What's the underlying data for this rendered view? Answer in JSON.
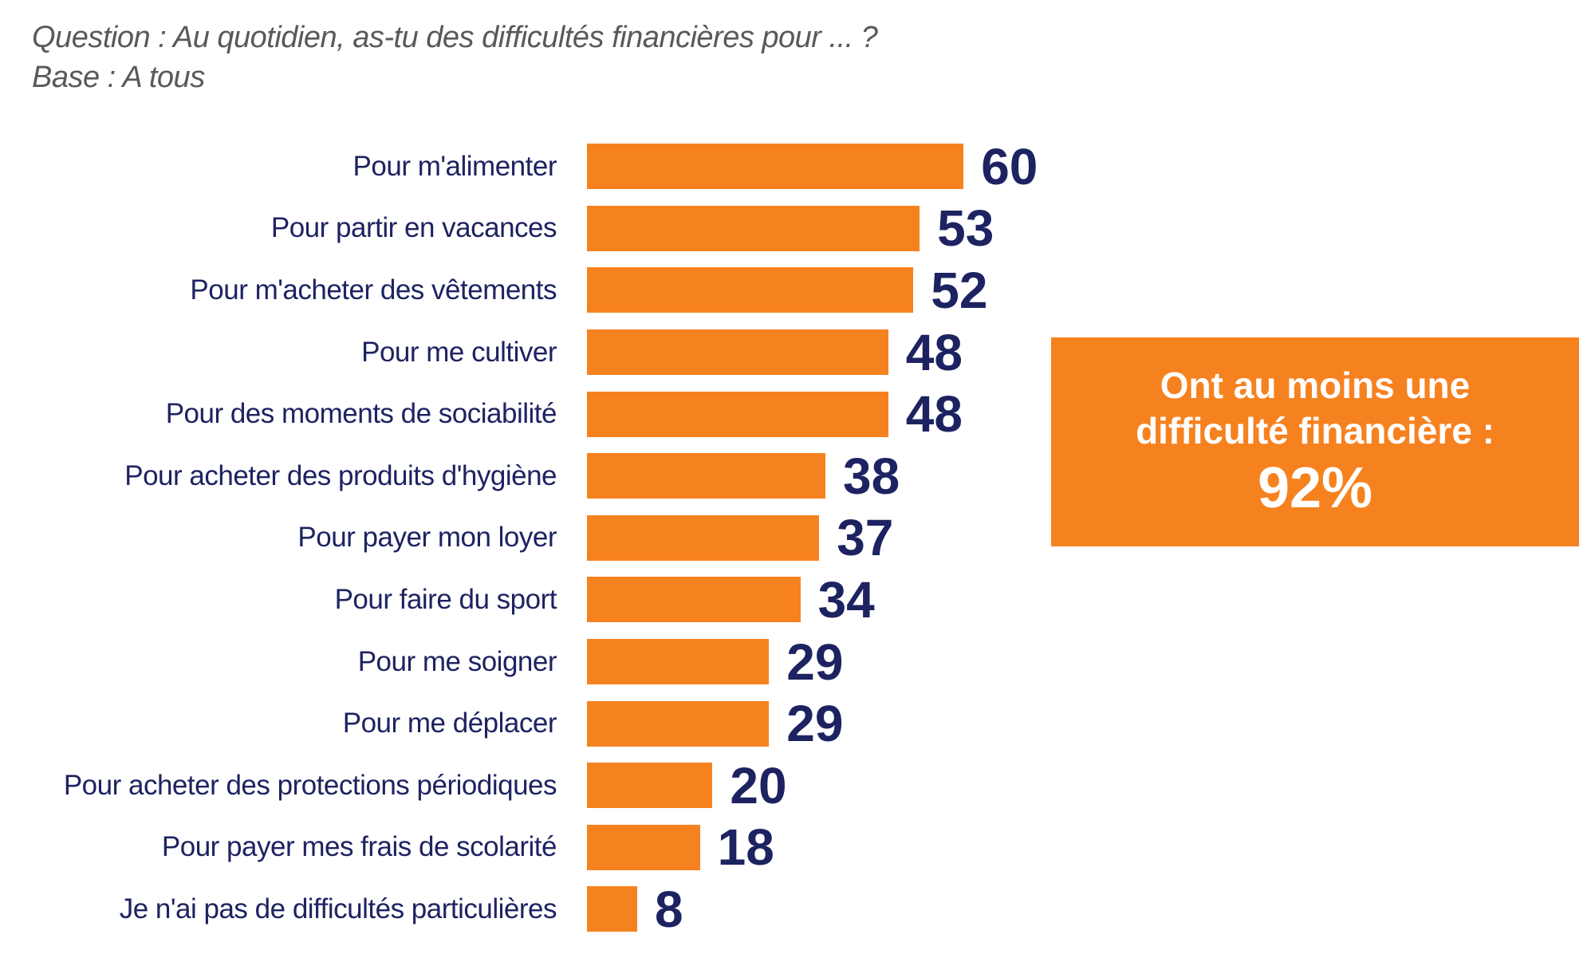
{
  "header": {
    "question": "Question : Au quotidien, as-tu des difficultés financières pour ... ?",
    "base": "Base : A tous"
  },
  "chart_data": {
    "type": "bar",
    "orientation": "horizontal",
    "categories": [
      "Pour m'alimenter",
      "Pour partir en vacances",
      "Pour m'acheter des vêtements",
      "Pour me cultiver",
      "Pour des moments de sociabilité",
      "Pour acheter des produits d'hygiène",
      "Pour payer mon loyer",
      "Pour faire du sport",
      "Pour me soigner",
      "Pour me déplacer",
      "Pour acheter des protections périodiques",
      "Pour payer mes frais de scolarité",
      "Je n'ai pas de difficultés particulières"
    ],
    "values": [
      60,
      53,
      52,
      48,
      48,
      38,
      37,
      34,
      29,
      29,
      20,
      18,
      8
    ],
    "value_labels_shown": true,
    "xlim": [
      0,
      60
    ],
    "grid": false,
    "legend": false,
    "bar_color": "#F6821F",
    "value_label_color": "#1D2361",
    "category_label_color": "#1D2361"
  },
  "callout": {
    "line1": "Ont au moins une",
    "line2": "difficulté financière :",
    "value": "92%",
    "bg_color": "#F6821F",
    "text_color": "#FFFFFF"
  },
  "colors": {
    "orange": "#F6821F",
    "navy": "#1D2361",
    "header_gray": "#58595B",
    "background": "#FFFFFF"
  }
}
